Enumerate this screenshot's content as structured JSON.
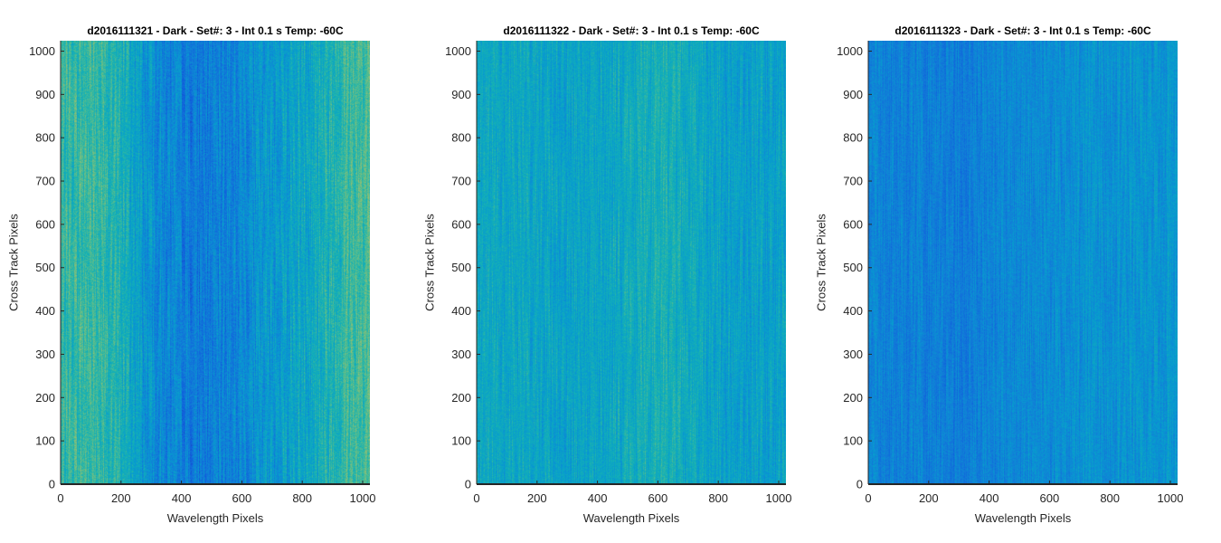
{
  "chart_data": [
    {
      "type": "heatmap",
      "title": "d2016111321 - Dark - Set#: 3 - Int 0.1 s Temp: -60C",
      "xlabel": "Wavelength Pixels",
      "ylabel": "Cross Track Pixels",
      "xlim": [
        0,
        1024
      ],
      "ylim": [
        0,
        1024
      ],
      "xticks": [
        0,
        200,
        400,
        600,
        800,
        1000
      ],
      "yticks": [
        0,
        100,
        200,
        300,
        400,
        500,
        600,
        700,
        800,
        900,
        1000
      ],
      "colormap": "parula",
      "column_profile": {
        "x": [
          0,
          100,
          200,
          270,
          350,
          450,
          550,
          650,
          750,
          850,
          950,
          1024
        ],
        "level": [
          0.6,
          0.62,
          0.55,
          0.42,
          0.33,
          0.28,
          0.32,
          0.38,
          0.45,
          0.52,
          0.62,
          0.66
        ]
      },
      "noise": 0.11
    },
    {
      "type": "heatmap",
      "title": "d2016111322 - Dark - Set#: 3 - Int 0.1 s Temp: -60C",
      "xlabel": "Wavelength Pixels",
      "ylabel": "Cross Track Pixels",
      "xlim": [
        0,
        1024
      ],
      "ylim": [
        0,
        1024
      ],
      "xticks": [
        0,
        200,
        400,
        600,
        800,
        1000
      ],
      "yticks": [
        0,
        100,
        200,
        300,
        400,
        500,
        600,
        700,
        800,
        900,
        1000
      ],
      "colormap": "parula",
      "column_profile": {
        "x": [
          0,
          150,
          300,
          450,
          550,
          600,
          700,
          800,
          900,
          1024
        ],
        "level": [
          0.5,
          0.48,
          0.47,
          0.49,
          0.53,
          0.54,
          0.5,
          0.46,
          0.45,
          0.46
        ]
      },
      "noise": 0.09
    },
    {
      "type": "heatmap",
      "title": "d2016111323 - Dark - Set#: 3 - Int 0.1 s Temp: -60C",
      "xlabel": "Wavelength Pixels",
      "ylabel": "Cross Track Pixels",
      "xlim": [
        0,
        1024
      ],
      "ylim": [
        0,
        1024
      ],
      "xticks": [
        0,
        200,
        400,
        600,
        800,
        1000
      ],
      "yticks": [
        0,
        100,
        200,
        300,
        400,
        500,
        600,
        700,
        800,
        900,
        1000
      ],
      "colormap": "parula",
      "column_profile": {
        "x": [
          0,
          150,
          300,
          450,
          600,
          750,
          900,
          1024
        ],
        "level": [
          0.33,
          0.31,
          0.3,
          0.33,
          0.36,
          0.39,
          0.4,
          0.41
        ]
      },
      "noise": 0.08
    }
  ]
}
